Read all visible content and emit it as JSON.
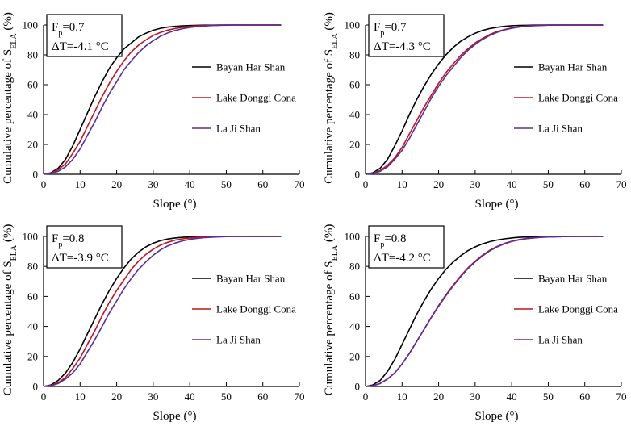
{
  "colors": {
    "Bayan Har Shan": "#000000",
    "Lake Donggi Cona": "#c0141c",
    "La Ji Shan": "#5b2c9c"
  },
  "chart_data": [
    {
      "type": "line",
      "title": "",
      "fp": "0.7",
      "dt": "-4.1",
      "xlabel": "Slope (°)",
      "ylabel_main": "Cumulative percentage of S",
      "ylabel_sub": "ELA",
      "ylabel_end": " (%)",
      "xlim": [
        0,
        70
      ],
      "ylim": [
        0,
        100
      ],
      "xticks": [
        0,
        10,
        20,
        30,
        40,
        50,
        60,
        70
      ],
      "yticks": [
        0,
        20,
        40,
        60,
        80,
        100
      ],
      "legend": "center-right",
      "x": [
        0,
        2,
        4,
        6,
        8,
        10,
        12,
        14,
        16,
        18,
        20,
        22,
        24,
        26,
        28,
        30,
        32,
        34,
        36,
        38,
        40,
        42,
        44,
        46,
        48,
        50,
        52,
        54,
        56,
        58,
        60,
        62,
        65
      ],
      "series": [
        {
          "name": "Bayan Har Shan",
          "values": [
            0,
            1,
            4,
            10,
            19,
            30,
            41,
            52,
            62,
            71,
            78,
            84,
            88,
            92,
            94.5,
            96.5,
            97.8,
            98.6,
            99.1,
            99.4,
            99.6,
            99.8,
            99.9,
            99.9,
            100,
            100,
            100,
            100,
            100,
            100,
            100,
            100,
            100
          ]
        },
        {
          "name": "Lake Donggi Cona",
          "values": [
            0,
            0.8,
            3,
            7,
            14,
            22,
            32,
            42,
            52,
            61,
            69,
            76,
            82,
            86.5,
            90,
            93,
            95,
            96.6,
            97.7,
            98.5,
            99,
            99.4,
            99.6,
            99.8,
            99.9,
            100,
            100,
            100,
            100,
            100,
            100,
            100,
            100
          ]
        },
        {
          "name": "La Ji Shan",
          "values": [
            0,
            0.5,
            2,
            5,
            10,
            17,
            26,
            35,
            45,
            54,
            62,
            70,
            76,
            81.5,
            86,
            89.5,
            92.5,
            94.7,
            96.3,
            97.5,
            98.3,
            98.9,
            99.3,
            99.6,
            99.8,
            99.9,
            100,
            100,
            100,
            100,
            100,
            100,
            100
          ]
        }
      ]
    },
    {
      "type": "line",
      "title": "",
      "fp": "0.7",
      "dt": "-4.3",
      "xlabel": "Slope (°)",
      "ylabel_main": "Cumulative percentage of S",
      "ylabel_sub": "ELA",
      "ylabel_end": " (%)",
      "xlim": [
        0,
        70
      ],
      "ylim": [
        0,
        100
      ],
      "xticks": [
        0,
        10,
        20,
        30,
        40,
        50,
        60,
        70
      ],
      "yticks": [
        0,
        20,
        40,
        60,
        80,
        100
      ],
      "legend": "center-right",
      "x": [
        0,
        2,
        4,
        6,
        8,
        10,
        12,
        14,
        16,
        18,
        20,
        22,
        24,
        26,
        28,
        30,
        32,
        34,
        36,
        38,
        40,
        42,
        44,
        46,
        48,
        50,
        52,
        54,
        56,
        58,
        60,
        62,
        65
      ],
      "series": [
        {
          "name": "Bayan Har Shan",
          "values": [
            0,
            1,
            4,
            10,
            19,
            29,
            40,
            50,
            59,
            67,
            74,
            80,
            85,
            89,
            92,
            94.5,
            96.3,
            97.6,
            98.5,
            99.1,
            99.5,
            99.7,
            99.8,
            99.9,
            100,
            100,
            100,
            100,
            100,
            100,
            100,
            100,
            100
          ]
        },
        {
          "name": "Lake Donggi Cona",
          "values": [
            0,
            0.6,
            2.5,
            6,
            11,
            18,
            27,
            36,
            45,
            53,
            61,
            68,
            74,
            79.5,
            84,
            88,
            91,
            93.6,
            95.6,
            97,
            98,
            98.8,
            99.3,
            99.6,
            99.8,
            99.9,
            100,
            100,
            100,
            100,
            100,
            100,
            100
          ]
        },
        {
          "name": "La Ji Shan",
          "values": [
            0,
            0.5,
            2,
            5,
            10,
            16,
            24,
            33,
            42,
            51,
            59,
            66,
            72,
            78,
            83,
            87,
            90.3,
            93,
            95.1,
            96.7,
            97.8,
            98.6,
            99.2,
            99.5,
            99.7,
            99.9,
            100,
            100,
            100,
            100,
            100,
            100,
            100
          ]
        }
      ]
    },
    {
      "type": "line",
      "title": "",
      "fp": "0.8",
      "dt": "-3.9",
      "xlabel": "Slope (°)",
      "ylabel_main": "Cumulative percentage of S",
      "ylabel_sub": "ELA",
      "ylabel_end": " (%)",
      "xlim": [
        0,
        70
      ],
      "ylim": [
        0,
        100
      ],
      "xticks": [
        0,
        10,
        20,
        30,
        40,
        50,
        60,
        70
      ],
      "yticks": [
        0,
        20,
        40,
        60,
        80,
        100
      ],
      "legend": "center-right",
      "x": [
        0,
        2,
        4,
        6,
        8,
        10,
        12,
        14,
        16,
        18,
        20,
        22,
        24,
        26,
        28,
        30,
        32,
        34,
        36,
        38,
        40,
        42,
        44,
        46,
        48,
        50,
        52,
        54,
        56,
        58,
        60,
        62,
        65
      ],
      "series": [
        {
          "name": "Bayan Har Shan",
          "values": [
            0,
            1,
            4,
            9,
            16,
            25,
            35,
            45,
            55,
            64,
            72,
            79,
            85,
            89.5,
            93,
            95.5,
            97.2,
            98.3,
            99,
            99.4,
            99.7,
            99.8,
            99.9,
            100,
            100,
            100,
            100,
            100,
            100,
            100,
            100,
            100,
            100
          ]
        },
        {
          "name": "Lake Donggi Cona",
          "values": [
            0,
            0.7,
            2.5,
            6,
            12,
            19,
            28,
            37,
            47,
            56,
            64,
            71,
            78,
            83.5,
            88,
            91.5,
            94.2,
            96.1,
            97.5,
            98.4,
            99,
            99.4,
            99.7,
            99.8,
            99.9,
            100,
            100,
            100,
            100,
            100,
            100,
            100,
            100
          ]
        },
        {
          "name": "La Ji Shan",
          "values": [
            0,
            0.5,
            2,
            5,
            9,
            15,
            23,
            31,
            40,
            49,
            57,
            65,
            72,
            78,
            83,
            87.5,
            91,
            93.7,
            95.6,
            97,
            98,
            98.7,
            99.2,
            99.5,
            99.7,
            99.9,
            100,
            100,
            100,
            100,
            100,
            100,
            100
          ]
        }
      ]
    },
    {
      "type": "line",
      "title": "",
      "fp": "0.8",
      "dt": "-4.2",
      "xlabel": "Slope (°)",
      "ylabel_main": "Cumulative percentage of S",
      "ylabel_sub": "ELA",
      "ylabel_end": " (%)",
      "xlim": [
        0,
        70
      ],
      "ylim": [
        0,
        100
      ],
      "xticks": [
        0,
        10,
        20,
        30,
        40,
        50,
        60,
        70
      ],
      "yticks": [
        0,
        20,
        40,
        60,
        80,
        100
      ],
      "legend": "center-right",
      "x": [
        0,
        2,
        4,
        6,
        8,
        10,
        12,
        14,
        16,
        18,
        20,
        22,
        24,
        26,
        28,
        30,
        32,
        34,
        36,
        38,
        40,
        42,
        44,
        46,
        48,
        50,
        52,
        54,
        56,
        58,
        60,
        62,
        65
      ],
      "series": [
        {
          "name": "Bayan Har Shan",
          "values": [
            0,
            1,
            4,
            10,
            18,
            28,
            38,
            48,
            57,
            65,
            72,
            78,
            83,
            87,
            90.5,
            93,
            95,
            96.5,
            97.6,
            98.4,
            99,
            99.4,
            99.6,
            99.8,
            99.9,
            100,
            100,
            100,
            100,
            100,
            100,
            100,
            100
          ]
        },
        {
          "name": "Lake Donggi Cona",
          "values": [
            0,
            0.5,
            2,
            5,
            9,
            15,
            22,
            30,
            38,
            46,
            54,
            61,
            67.5,
            73.5,
            79,
            83.5,
            87.5,
            90.8,
            93.3,
            95.3,
            96.8,
            97.9,
            98.6,
            99.1,
            99.5,
            99.7,
            99.8,
            99.9,
            100,
            100,
            100,
            100,
            100
          ]
        },
        {
          "name": "La Ji Shan",
          "values": [
            0,
            0.5,
            2,
            5,
            9,
            15,
            22,
            30,
            38,
            46,
            53.5,
            60.5,
            67,
            73,
            78.5,
            83,
            87,
            90.4,
            93,
            95,
            96.6,
            97.7,
            98.5,
            99,
            99.4,
            99.6,
            99.8,
            99.9,
            100,
            100,
            100,
            100,
            100
          ]
        }
      ]
    }
  ]
}
